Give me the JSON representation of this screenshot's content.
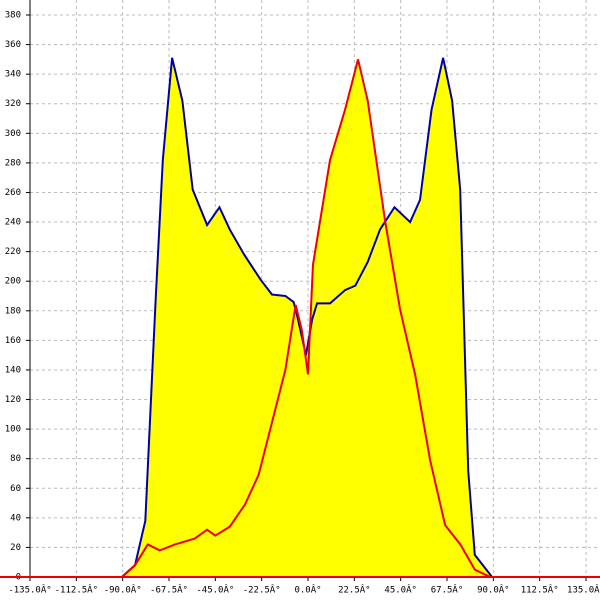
{
  "chart_data": {
    "type": "area",
    "xlim": [
      -135,
      135
    ],
    "xticks": [
      {
        "value": -135,
        "label": "-135.0Â°"
      },
      {
        "value": -112.5,
        "label": "-112.5Â°"
      },
      {
        "value": -90,
        "label": "-90.0Â°"
      },
      {
        "value": -67.5,
        "label": "-67.5Â°"
      },
      {
        "value": -45,
        "label": "-45.0Â°"
      },
      {
        "value": -22.5,
        "label": "-22.5Â°"
      },
      {
        "value": 0,
        "label": "0.0Â°"
      },
      {
        "value": 22.5,
        "label": "22.5Â°"
      },
      {
        "value": 45,
        "label": "45.0Â°"
      },
      {
        "value": 67.5,
        "label": "67.5Â°"
      },
      {
        "value": 90,
        "label": "90.0Â°"
      },
      {
        "value": 112.5,
        "label": "112.5Â°"
      },
      {
        "value": 135,
        "label": "135.0Â°"
      }
    ],
    "ylim": [
      0,
      380
    ],
    "yticks": [
      0,
      20,
      40,
      60,
      80,
      100,
      120,
      140,
      160,
      180,
      200,
      220,
      240,
      260,
      280,
      300,
      320,
      340,
      360,
      380
    ],
    "grid": true,
    "fill": "#ffff00",
    "series": [
      {
        "color": "#0000aa",
        "x": [
          -90.4,
          -84,
          -79,
          -74,
          -70.5,
          -66,
          -61,
          -56,
          -49,
          -43,
          -38,
          -31,
          -23,
          -17.5,
          -11,
          -7,
          -5,
          -1,
          2,
          4.4,
          10.7,
          18,
          23,
          29,
          35,
          42,
          49.6,
          54.4,
          60,
          65.6,
          70,
          73.9,
          77.8,
          81,
          89.4
        ],
        "values": [
          0,
          8,
          38,
          187,
          282,
          351,
          322,
          262,
          238,
          250,
          235,
          218,
          201,
          191,
          190,
          186,
          175,
          150,
          174,
          185,
          185,
          194,
          197,
          213,
          235,
          250,
          240,
          255,
          316,
          351,
          322,
          262,
          72,
          15,
          0
        ]
      },
      {
        "color": "#ee0000",
        "x": [
          -90.4,
          -84,
          -77.8,
          -72,
          -64.6,
          -55,
          -49,
          -45,
          -38,
          -30.6,
          -24,
          -18.5,
          -11,
          -6,
          -3,
          0,
          2.4,
          10.7,
          18,
          24.3,
          29,
          37.4,
          44.7,
          52,
          59.3,
          66.6,
          74,
          81,
          88.5
        ],
        "values": [
          0,
          8,
          22,
          18,
          22,
          26,
          32,
          28,
          34,
          49,
          69,
          99,
          140,
          184,
          167,
          137,
          211,
          282,
          316,
          350,
          322,
          241,
          181,
          137,
          79,
          35,
          22,
          5,
          0
        ]
      }
    ]
  }
}
